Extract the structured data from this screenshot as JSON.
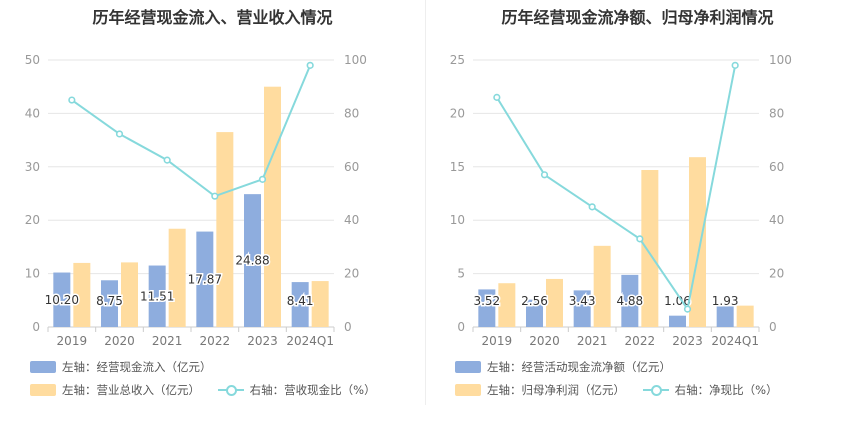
{
  "colors": {
    "bar_primary": "#8eadde",
    "bar_secondary": "#ffdc9f",
    "line": "#86d9dc",
    "grid": "#e6e6e6",
    "tick": "#999999"
  },
  "chart_data": [
    {
      "type": "bar",
      "title": "历年经营现金流入、营业收入情况",
      "categories": [
        "2019",
        "2020",
        "2021",
        "2022",
        "2023",
        "2024Q1"
      ],
      "ylim": [
        0,
        50
      ],
      "y_ticks": [
        "0",
        "10",
        "20",
        "30",
        "40",
        "50"
      ],
      "y2lim": [
        0,
        100
      ],
      "y2_ticks": [
        "0",
        "20",
        "40",
        "60",
        "80",
        "100"
      ],
      "grid": true,
      "legend_position": "bottom",
      "series": [
        {
          "name": "左轴：经营现金流入（亿元）",
          "kind": "bar",
          "axis": "left",
          "color": "#8eadde",
          "values": [
            10.2,
            8.75,
            11.51,
            17.87,
            24.88,
            8.41
          ],
          "labels": [
            "10.20",
            "8.75",
            "11.51",
            "17.87",
            "24.88",
            "8.41"
          ]
        },
        {
          "name": "左轴：营业总收入（亿元）",
          "kind": "bar",
          "axis": "left",
          "color": "#ffdc9f",
          "values": [
            12.0,
            12.1,
            18.4,
            36.5,
            45.0,
            8.6
          ]
        },
        {
          "name": "右轴：营收现金比（%）",
          "kind": "line",
          "axis": "right",
          "color": "#86d9dc",
          "values": [
            85,
            72.3,
            62.5,
            49,
            55.3,
            98
          ]
        }
      ]
    },
    {
      "type": "bar",
      "title": "历年经营现金流净额、归母净利润情况",
      "categories": [
        "2019",
        "2020",
        "2021",
        "2022",
        "2023",
        "2024Q1"
      ],
      "ylim": [
        0,
        25
      ],
      "y_ticks": [
        "0",
        "5",
        "10",
        "15",
        "20",
        "25"
      ],
      "y2lim": [
        0,
        100
      ],
      "y2_ticks": [
        "0",
        "20",
        "40",
        "60",
        "80",
        "100"
      ],
      "grid": true,
      "legend_position": "bottom",
      "series": [
        {
          "name": "左轴：经营活动现金流净额（亿元）",
          "kind": "bar",
          "axis": "left",
          "color": "#8eadde",
          "values": [
            3.52,
            2.56,
            3.43,
            4.88,
            1.06,
            1.93
          ],
          "labels": [
            "3.52",
            "2.56",
            "3.43",
            "4.88",
            "1.06",
            "1.93"
          ]
        },
        {
          "name": "左轴：归母净利润（亿元）",
          "kind": "bar",
          "axis": "left",
          "color": "#ffdc9f",
          "values": [
            4.1,
            4.5,
            7.6,
            14.7,
            15.9,
            2.0
          ]
        },
        {
          "name": "右轴：净现比（%）",
          "kind": "line",
          "axis": "right",
          "color": "#86d9dc",
          "values": [
            86,
            57,
            45,
            33,
            6.7,
            98
          ]
        }
      ]
    }
  ]
}
